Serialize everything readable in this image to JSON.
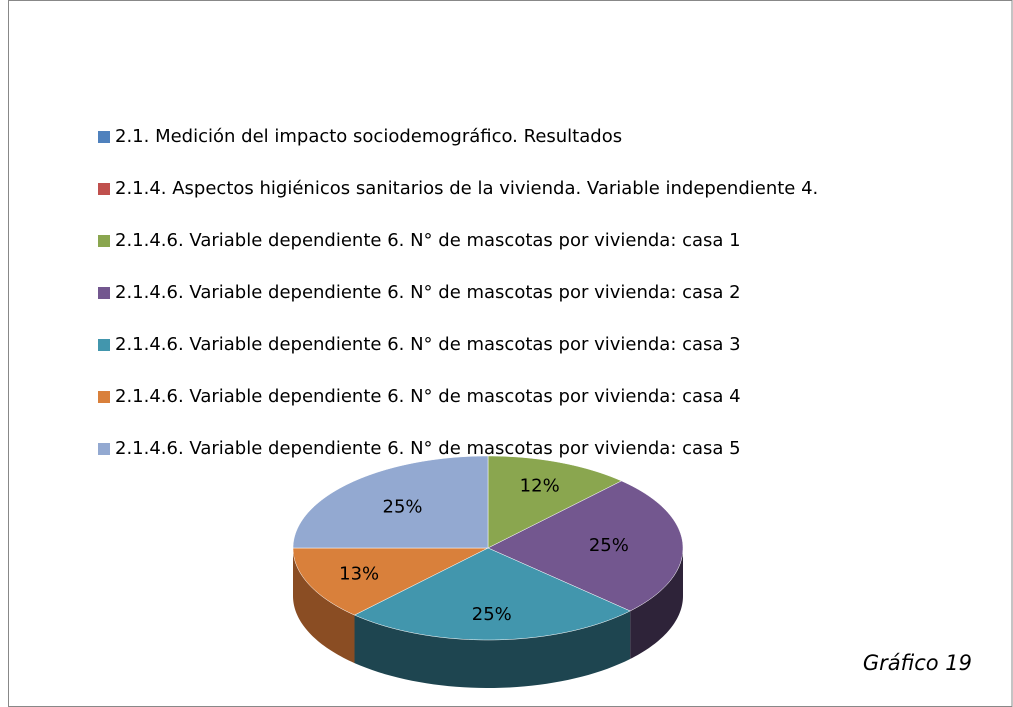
{
  "chart_data": {
    "type": "pie",
    "categories": [
      "2.1. Medición del impacto  sociodemográfico. Resultados",
      "2.1.4. Aspectos higiénicos sanitarios de la vivienda. Variable independiente 4.",
      "2.1.4.6. Variable dependiente 6.  N° de mascotas por vivienda: casa 1",
      "2.1.4.6. Variable dependiente 6.  N° de mascotas por vivienda: casa 2",
      "2.1.4.6. Variable dependiente 6.  N° de mascotas por vivienda: casa 3",
      "2.1.4.6. Variable dependiente 6.  N° de mascotas por vivienda: casa 4",
      "2.1.4.6. Variable dependiente 6.  N° de mascotas por vivienda: casa 5"
    ],
    "values": [
      0,
      0,
      12,
      25,
      25,
      13,
      25
    ],
    "value_labels": [
      null,
      null,
      "12%",
      "25%",
      "25%",
      "13%",
      "25%"
    ],
    "colors": [
      "#4f81bd",
      "#c0504d",
      "#8aa64f",
      "#73578f",
      "#4296ad",
      "#d9803b",
      "#93a9d1"
    ],
    "side_colors": [
      "#2f4d71",
      "#73302e",
      "#53642f",
      "#2e2339",
      "#1e4550",
      "#8a4d23",
      "#5b6a86"
    ],
    "legend": "top",
    "caption": "Gráfico 19"
  }
}
